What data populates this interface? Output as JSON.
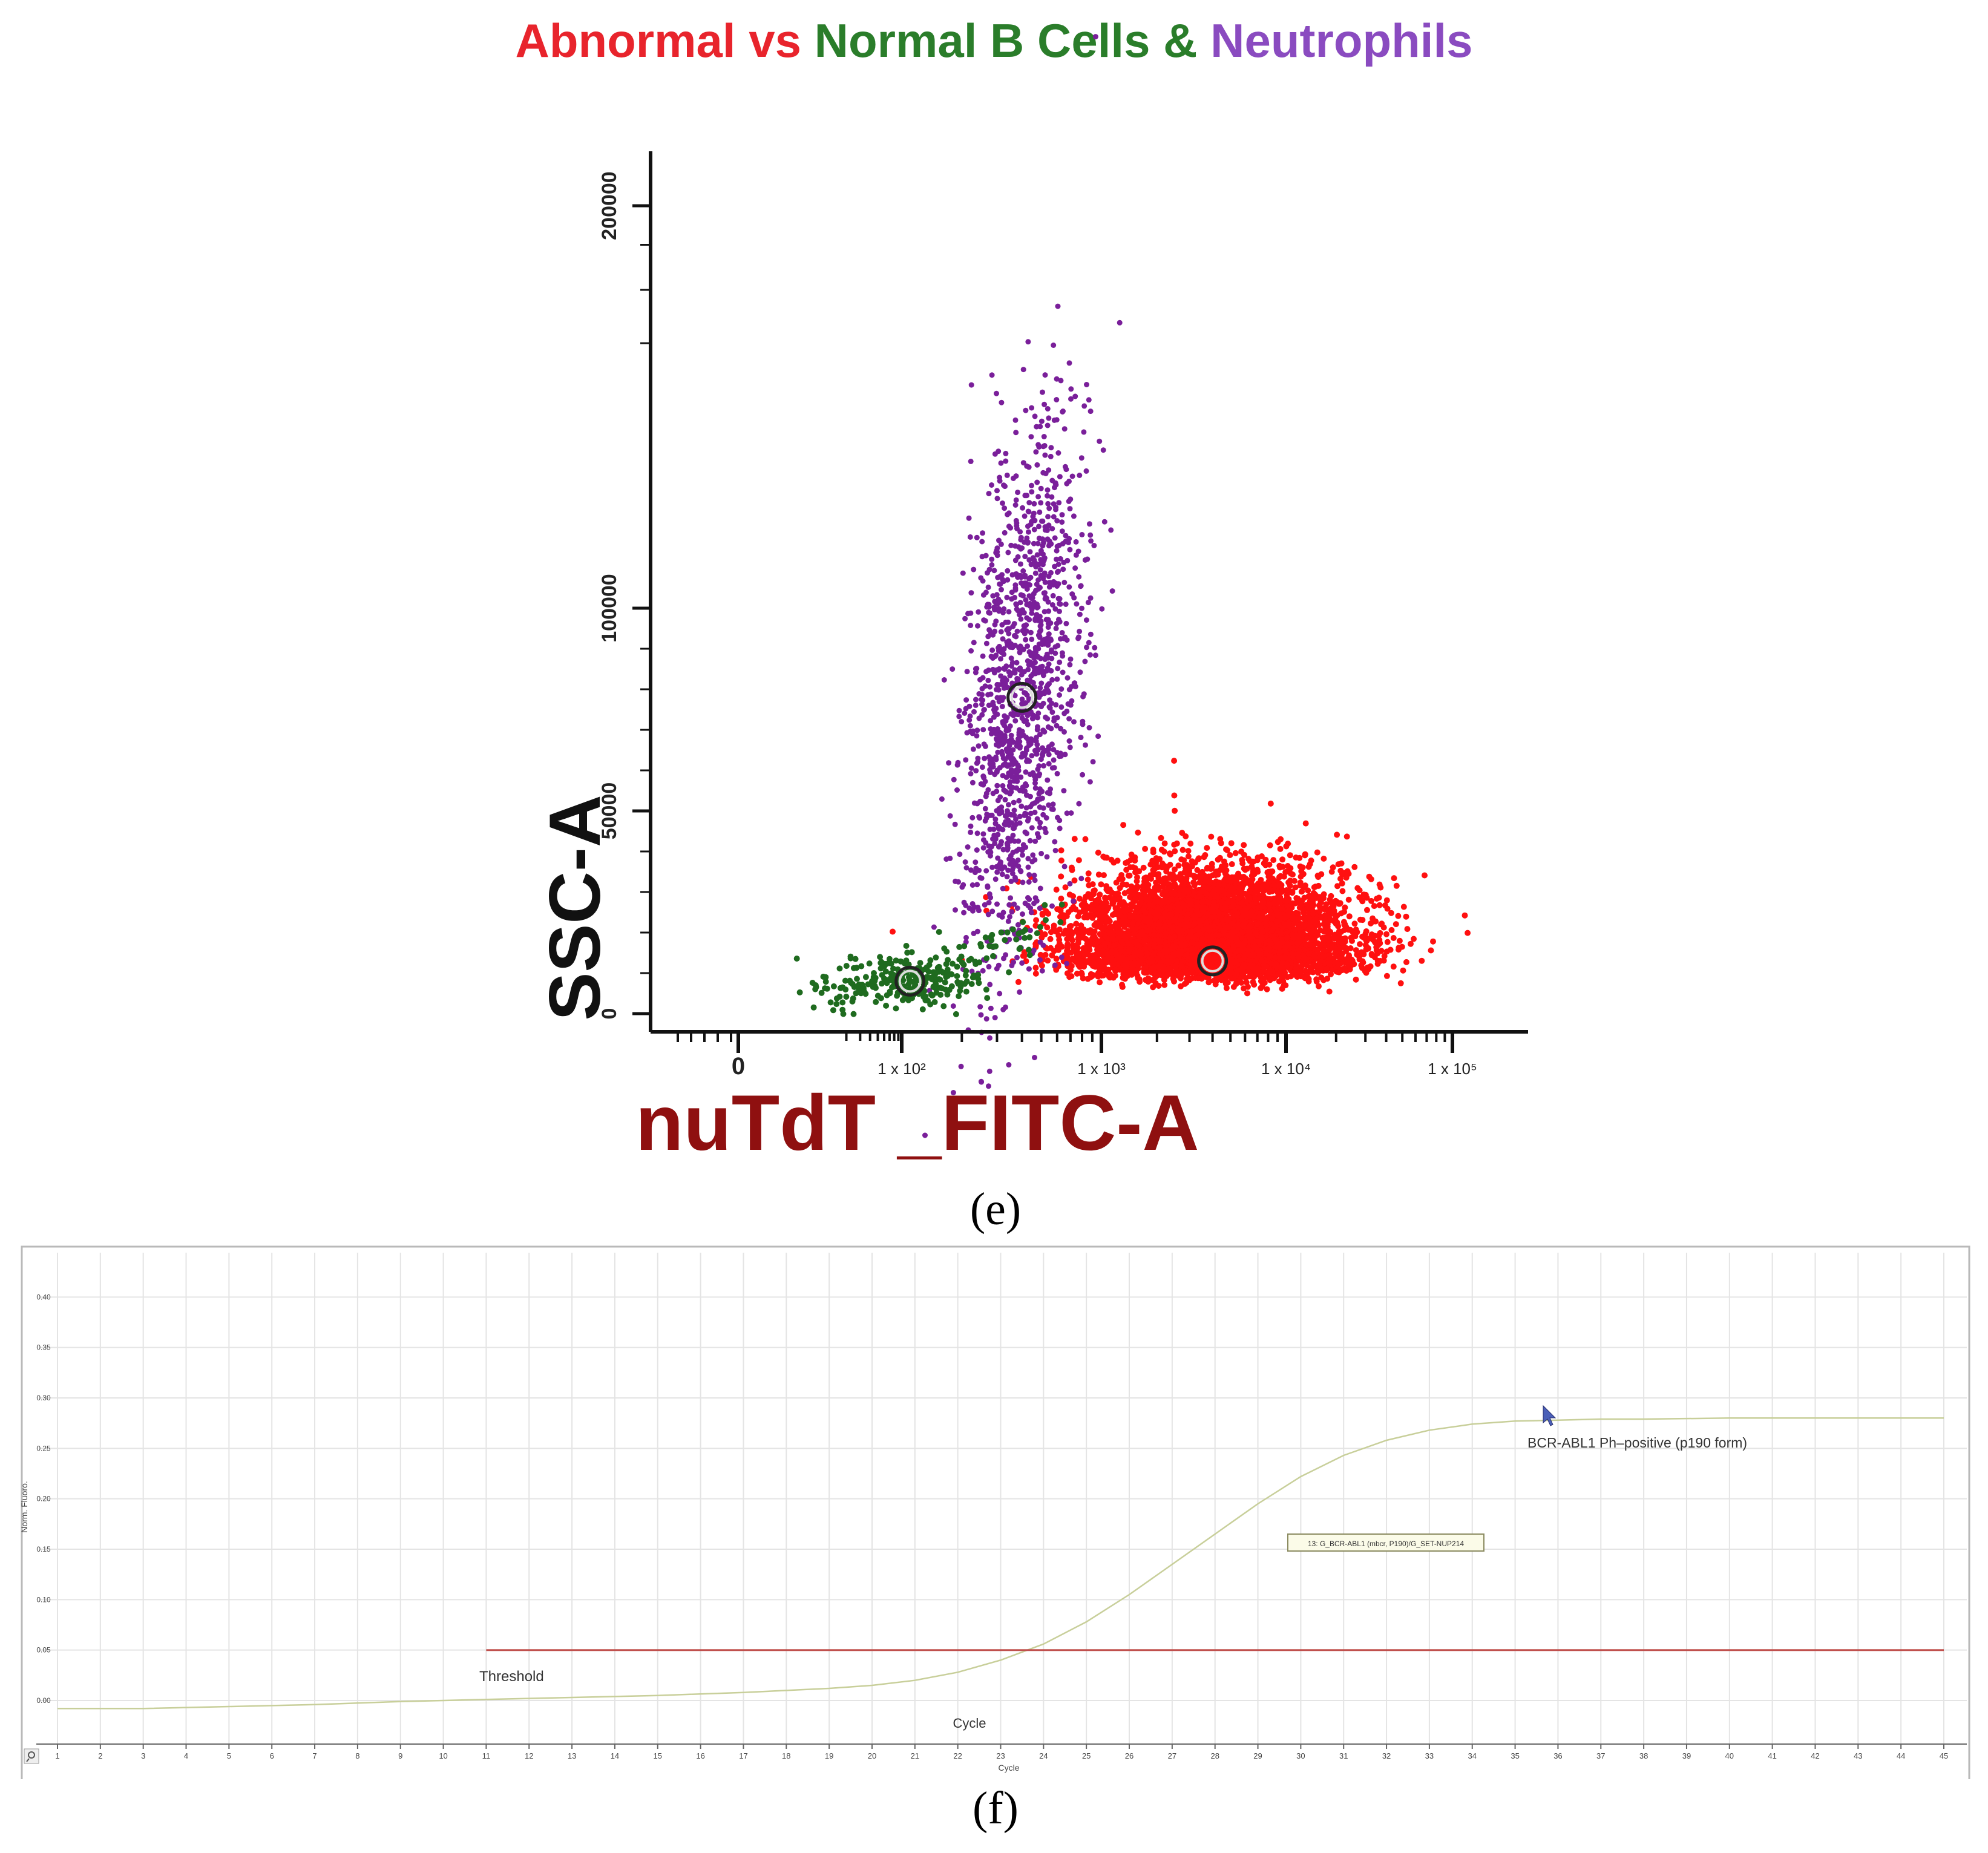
{
  "panel_e": {
    "title_parts": [
      {
        "text": "Abnormal vs ",
        "color": "#e8242c"
      },
      {
        "text": "Normal B Cells & ",
        "color": "#2a7d2a"
      },
      {
        "text": "Neutrophils",
        "color": "#8a4bc0"
      }
    ],
    "caption": "(e)",
    "xlabel": "nuTdT _FITC-A",
    "ylabel": "SSC-A"
  },
  "panel_f": {
    "caption": "(f)",
    "ylabel": "Norm. Fluoro.",
    "xlabel": "Cycle",
    "cycle_label": "Cycle",
    "threshold_label": "Threshold",
    "curve_label": "BCR-ABL1 Ph–positive (p190 form)",
    "curve_tag": "13: G_BCR-ABL1 (mbcr, P190)/G_SET-NUP214"
  },
  "chart_data": [
    {
      "type": "scatter",
      "title": "Abnormal vs Normal B Cells & Neutrophils",
      "xlabel": "nuTdT _FITC-A",
      "ylabel": "SSC-A",
      "x_scale": "biexponential",
      "x_tick_labels": [
        "0",
        "1 x 10²",
        "1 x 10³",
        "1 x 10⁴",
        "1 x 10⁵"
      ],
      "x_ticks": [
        0,
        100,
        1000,
        10000,
        100000
      ],
      "y_tick_labels": [
        "0",
        "50000",
        "100000",
        "200000"
      ],
      "y_ticks": [
        0,
        50000,
        100000,
        200000
      ],
      "populations": [
        {
          "name": "Abnormal",
          "color": "#ff1010",
          "center_x": 4000,
          "center_y": 13000,
          "x_range": [
            500,
            20000
          ],
          "y_range": [
            5000,
            48000
          ]
        },
        {
          "name": "Normal B Cells",
          "color": "#1f6b1f",
          "center_x": 110,
          "center_y": 8000,
          "x_range": [
            5,
            600
          ],
          "y_range": [
            3000,
            20000
          ]
        },
        {
          "name": "Neutrophils",
          "color": "#7a1f9a",
          "center_x": 400,
          "center_y": 78000,
          "x_range": [
            100,
            1100
          ],
          "y_range": [
            20000,
            150000
          ]
        }
      ],
      "grid": false
    },
    {
      "type": "line",
      "xlabel": "Cycle",
      "ylabel": "Norm. Fluoro.",
      "xlim": [
        1,
        45
      ],
      "ylim": [
        -0.03,
        0.42
      ],
      "x_ticks": [
        1,
        2,
        3,
        4,
        5,
        6,
        7,
        8,
        9,
        10,
        11,
        12,
        13,
        14,
        15,
        16,
        17,
        18,
        19,
        20,
        21,
        22,
        23,
        24,
        25,
        26,
        27,
        28,
        29,
        30,
        31,
        32,
        33,
        34,
        35,
        36,
        37,
        38,
        39,
        40,
        41,
        42,
        43,
        44,
        45
      ],
      "y_ticks": [
        "0.00",
        "0.05",
        "0.10",
        "0.15",
        "0.20",
        "0.25",
        "0.30",
        "0.35",
        "0.40"
      ],
      "grid": true,
      "series": [
        {
          "name": "BCR-ABL1 Ph–positive (p190 form)",
          "color": "#c8cf9a",
          "x": [
            1,
            3,
            5,
            7,
            9,
            11,
            13,
            15,
            17,
            19,
            20,
            21,
            22,
            23,
            24,
            25,
            26,
            27,
            28,
            29,
            30,
            31,
            32,
            33,
            34,
            35,
            36,
            37,
            38,
            40,
            42,
            45
          ],
          "y": [
            -0.008,
            -0.008,
            -0.006,
            -0.004,
            -0.001,
            0.001,
            0.003,
            0.005,
            0.008,
            0.012,
            0.015,
            0.02,
            0.028,
            0.04,
            0.056,
            0.078,
            0.105,
            0.135,
            0.165,
            0.195,
            0.222,
            0.243,
            0.258,
            0.268,
            0.274,
            0.277,
            0.278,
            0.279,
            0.279,
            0.28,
            0.28,
            0.28
          ]
        },
        {
          "name": "Threshold",
          "color": "#c0504d",
          "x": [
            11,
            45
          ],
          "y": [
            0.05,
            0.05
          ]
        }
      ]
    }
  ]
}
